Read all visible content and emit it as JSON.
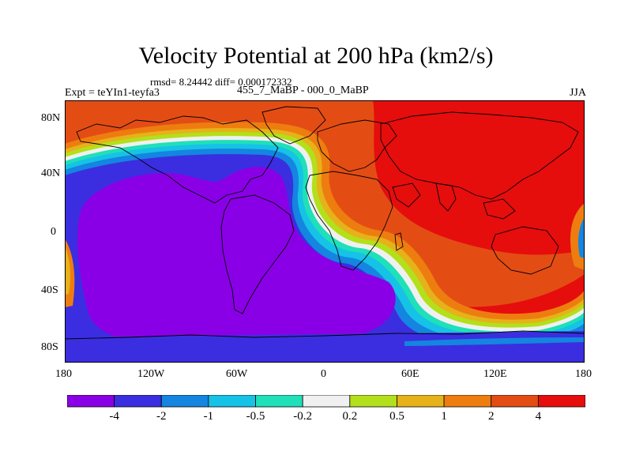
{
  "title": "Velocity Potential at 200 hPa (km2/s)",
  "stats": "rmsd= 8.24442  diff= 0.000172332",
  "experiment": "Expt = teYIn1-teyfa3",
  "subtitle": "455_7_MaBP - 000_0_MaBP",
  "season": "JJA",
  "y_ticks": [
    "80N",
    "40N",
    "0",
    "40S",
    "80S"
  ],
  "x_ticks": [
    "180",
    "120W",
    "60W",
    "0",
    "60E",
    "120E",
    "180"
  ],
  "colorbar": {
    "labels": [
      "-4",
      "-2",
      "-1",
      "-0.5",
      "-0.2",
      "0.2",
      "0.5",
      "1",
      "2",
      "4"
    ],
    "colors": [
      "#8a00e6",
      "#3a2ee0",
      "#1485e0",
      "#16c2e6",
      "#1fe0b8",
      "#f0f0f0",
      "#b2e01a",
      "#e6b21a",
      "#ee7d10",
      "#e34d14",
      "#e60d0d"
    ]
  }
}
